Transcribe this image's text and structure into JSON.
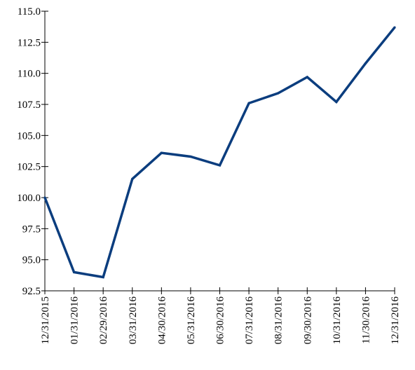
{
  "chart_data": {
    "type": "line",
    "title": "",
    "xlabel": "",
    "ylabel": "",
    "categories": [
      "12/31/2015",
      "01/31/2016",
      "02/29/2016",
      "03/31/2016",
      "04/30/2016",
      "05/31/2016",
      "06/30/2016",
      "07/31/2016",
      "08/31/2016",
      "09/30/2016",
      "10/31/2016",
      "11/30/2016",
      "12/31/2016"
    ],
    "series": [
      {
        "values": [
          100.0,
          94.0,
          93.6,
          101.5,
          103.6,
          103.3,
          102.6,
          107.6,
          108.4,
          109.7,
          107.7,
          110.8,
          113.7
        ]
      }
    ],
    "ylim": [
      92.5,
      115.0
    ],
    "yticks": [
      "92.5",
      "95.0",
      "97.5",
      "100.0",
      "102.5",
      "105.0",
      "107.5",
      "110.0",
      "112.5",
      "115.0"
    ],
    "grid": false,
    "legend": "none",
    "line_color": "#0b3d7e"
  }
}
